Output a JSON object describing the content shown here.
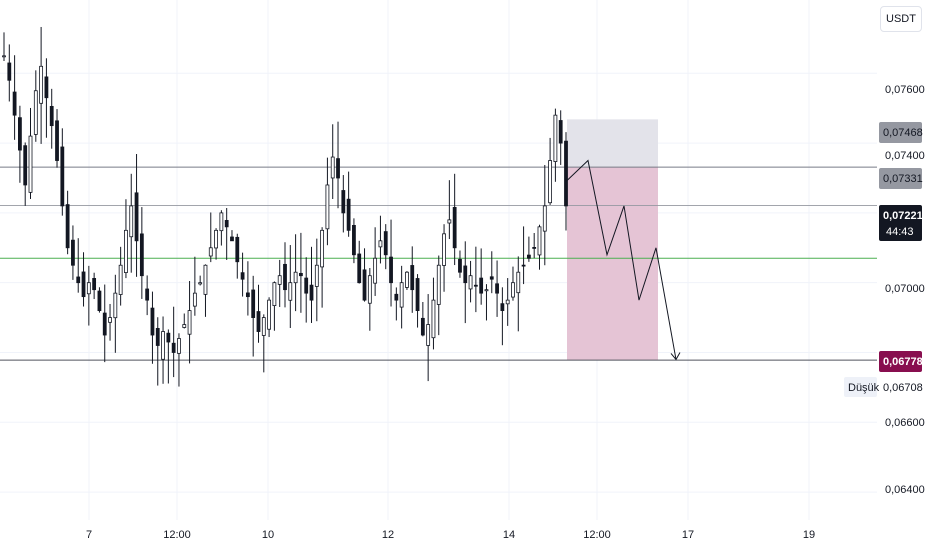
{
  "currency": "USDT",
  "low_label": "Düşük",
  "colors": {
    "candle": "#131722",
    "tag_grey": "#9598a1",
    "tag_current": "#131722",
    "tag_target": "#880e4f",
    "green_line": "#4caf50",
    "stop_zone": "#e3e3ea",
    "target_zone": "#e5c4d5"
  },
  "chart_data": {
    "type": "candlestick",
    "title": "",
    "xlabel": "",
    "ylabel": "",
    "ylim": [
      0.0632,
      0.0781
    ],
    "y_ticks": [
      "0,07600",
      "0,07400",
      "0,07000",
      "0,06600",
      "0,06400"
    ],
    "x_ticks": [
      "7",
      "12:00",
      "10",
      "12",
      "14",
      "12:00",
      "17",
      "19"
    ],
    "price_levels": {
      "stop_top": "0,07468",
      "entry": "0,07331",
      "current": "0,07221",
      "countdown": "44:43",
      "target": "0,06778",
      "low": "0,06708",
      "green_level": 0.0707
    },
    "close_path": [
      0.0765,
      0.0758,
      0.0748,
      0.0738,
      0.0728,
      0.0742,
      0.0755,
      0.0762,
      0.0753,
      0.0745,
      0.0735,
      0.0722,
      0.071,
      0.0705,
      0.07,
      0.0696,
      0.07,
      0.0698,
      0.0692,
      0.0685,
      0.069,
      0.0697,
      0.0705,
      0.0715,
      0.0722,
      0.0712,
      0.0702,
      0.0695,
      0.0685,
      0.0682,
      0.0686,
      0.0683,
      0.068,
      0.0684,
      0.0688,
      0.0692,
      0.0697,
      0.07,
      0.0705,
      0.071,
      0.0715,
      0.072,
      0.0716,
      0.0712,
      0.0706,
      0.0701,
      0.0696,
      0.069,
      0.0686,
      0.069,
      0.0695,
      0.07,
      0.0702,
      0.0698,
      0.07,
      0.0703,
      0.0702,
      0.0697,
      0.0695,
      0.0705,
      0.0715,
      0.0728,
      0.0736,
      0.073,
      0.072,
      0.0715,
      0.0708,
      0.07,
      0.0695,
      0.0702,
      0.0707,
      0.0712,
      0.0708,
      0.07,
      0.0695,
      0.07,
      0.0703,
      0.0698,
      0.0692,
      0.0685,
      0.0688,
      0.0695,
      0.0705,
      0.0714,
      0.0718,
      0.071,
      0.0703,
      0.07,
      0.0702,
      0.0699,
      0.0697,
      0.0698,
      0.0701,
      0.0697,
      0.0692,
      0.0695,
      0.07,
      0.0703,
      0.0705,
      0.0707,
      0.071,
      0.0716,
      0.0722,
      0.0735,
      0.0748,
      0.074,
      0.0722
    ],
    "projection": [
      0.0729,
      0.0735,
      0.0708,
      0.0722,
      0.0695,
      0.071,
      0.0678
    ]
  }
}
